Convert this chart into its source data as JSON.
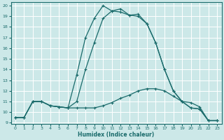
{
  "bg_color": "#cce8e8",
  "grid_color": "#ffffff",
  "line_color": "#1a6b6b",
  "xlabel": "Humidex (Indice chaleur)",
  "xlim": [
    0,
    23
  ],
  "ylim": [
    9,
    20
  ],
  "yticks": [
    9,
    10,
    11,
    12,
    13,
    14,
    15,
    16,
    17,
    18,
    19,
    20
  ],
  "xticks": [
    0,
    1,
    2,
    3,
    4,
    5,
    6,
    7,
    8,
    9,
    10,
    11,
    12,
    13,
    14,
    15,
    16,
    17,
    18,
    19,
    20,
    21,
    22,
    23
  ],
  "curve1_x": [
    0,
    1,
    2,
    3,
    4,
    5,
    6,
    7,
    8,
    9,
    10,
    11,
    12,
    13,
    14,
    15,
    16,
    17,
    18,
    19,
    20,
    21,
    22,
    23
  ],
  "curve1_y": [
    9.5,
    9.5,
    11.0,
    11.0,
    10.6,
    10.5,
    10.4,
    11.0,
    14.0,
    16.5,
    18.8,
    19.5,
    19.4,
    19.1,
    19.0,
    18.3,
    16.5,
    14.0,
    12.0,
    11.0,
    10.4,
    10.3,
    9.2,
    9.2
  ],
  "curve2_x": [
    0,
    1,
    2,
    3,
    4,
    5,
    6,
    7,
    8,
    9,
    10,
    11,
    12,
    13,
    14,
    15,
    16,
    17,
    18,
    19,
    20,
    21,
    22,
    23
  ],
  "curve2_y": [
    9.5,
    9.5,
    11.0,
    11.0,
    10.6,
    10.5,
    10.4,
    13.5,
    17.0,
    18.8,
    20.0,
    19.5,
    19.7,
    19.1,
    19.2,
    18.3,
    16.5,
    14.0,
    12.0,
    11.0,
    10.4,
    10.3,
    9.2,
    9.2
  ],
  "curve3_x": [
    0,
    1,
    2,
    3,
    4,
    5,
    6,
    7,
    8,
    9,
    10,
    11,
    12,
    13,
    14,
    15,
    16,
    17,
    18,
    19,
    20,
    21,
    22,
    23
  ],
  "curve3_y": [
    9.5,
    9.5,
    11.0,
    11.0,
    10.6,
    10.5,
    10.4,
    10.4,
    10.4,
    10.4,
    10.6,
    10.9,
    11.3,
    11.6,
    12.0,
    12.2,
    12.2,
    12.0,
    11.5,
    11.0,
    10.9,
    10.5,
    9.2,
    9.2
  ]
}
